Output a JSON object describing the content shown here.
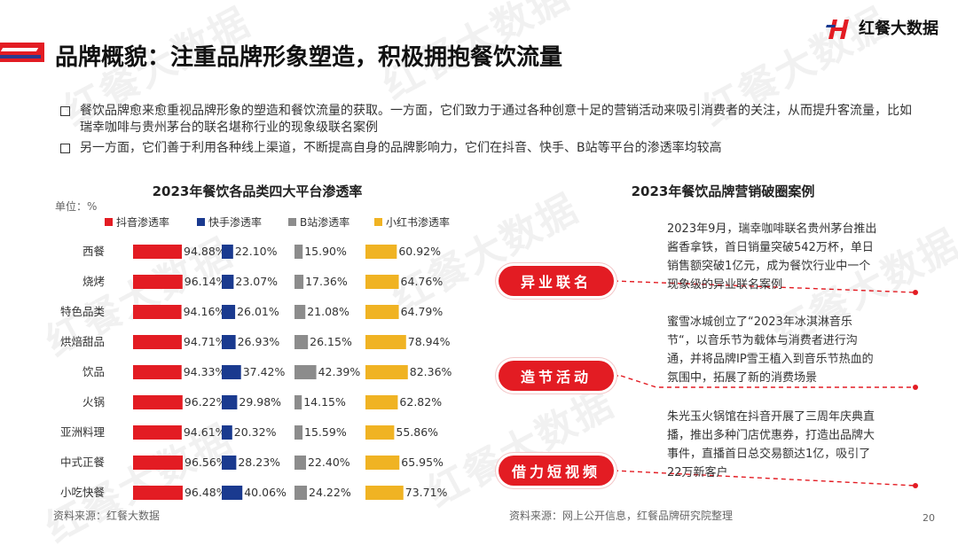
{
  "watermark": "红餐大数据",
  "header": {
    "title": "品牌概貌：注重品牌形象塑造，积极拥抱餐饮流量",
    "logo_text": "红餐大数据"
  },
  "bullets": [
    "餐饮品牌愈来愈重视品牌形象的塑造和餐饮流量的获取。一方面，它们致力于通过各种创意十足的营销活动来吸引消费者的关注，从而提升客流量，比如瑞幸咖啡与贵州茅台的联名堪称行业的现象级联名案例",
    "另一方面，它们善于利用各种线上渠道，不断提高自身的品牌影响力，它们在抖音、快手、B站等平台的渗透率均较高"
  ],
  "chart_data": {
    "type": "bar",
    "title": "2023年餐饮各品类四大平台渗透率",
    "unit_label": "单位：%",
    "categories": [
      "西餐",
      "烧烤",
      "特色品类",
      "烘焙甜品",
      "饮品",
      "火锅",
      "亚洲料理",
      "中式正餐",
      "小吃快餐"
    ],
    "series": [
      {
        "name": "抖音渗透率",
        "color": "#e31c23",
        "values": [
          94.88,
          96.14,
          94.16,
          94.71,
          94.33,
          96.22,
          94.61,
          96.56,
          96.48
        ],
        "labels": [
          "94.88%",
          "96.14%",
          "94.16%",
          "94.71%",
          "94.33%",
          "96.22%",
          "94.61%",
          "96.56%",
          "96.48%"
        ]
      },
      {
        "name": "快手渗透率",
        "color": "#1a3a8f",
        "values": [
          22.1,
          23.07,
          26.01,
          26.93,
          37.42,
          29.98,
          20.32,
          28.23,
          40.06
        ],
        "labels": [
          "22.10%",
          "23.07%",
          "26.01%",
          "26.93%",
          "37.42%",
          "29.98%",
          "20.32%",
          "28.23%",
          "40.06%"
        ]
      },
      {
        "name": "B站渗透率",
        "color": "#8c8c8c",
        "values": [
          15.9,
          17.36,
          21.08,
          26.15,
          42.39,
          14.15,
          15.59,
          22.4,
          24.22
        ],
        "labels": [
          "15.90%",
          "17.36%",
          "21.08%",
          "26.15%",
          "42.39%",
          "14.15%",
          "15.59%",
          "22.40%",
          "24.22%"
        ]
      },
      {
        "name": "小红书渗透率",
        "color": "#f0b323",
        "values": [
          60.92,
          64.76,
          64.79,
          78.94,
          82.36,
          62.82,
          55.86,
          65.95,
          73.71
        ],
        "labels": [
          "60.92%",
          "64.76%",
          "64.79%",
          "78.94%",
          "82.36%",
          "62.82%",
          "55.86%",
          "65.95%",
          "73.71%"
        ]
      }
    ],
    "grid": false,
    "legend_position": "top"
  },
  "cases": {
    "title": "2023年餐饮品牌营销破圈案例",
    "items": [
      {
        "tag": "异业联名",
        "text": "2023年9月，瑞幸咖啡联名贵州茅台推出酱香拿铁，首日销量突破542万杯，单日销售额突破1亿元，成为餐饮行业中一个现象级的异业联名案例"
      },
      {
        "tag": "造节活动",
        "text": "蜜雪冰城创立了“2023年冰淇淋音乐节“，以音乐节为载体与消费者进行沟通，并将品牌IP雪王植入到音乐节热血的氛围中，拓展了新的消费场景"
      },
      {
        "tag": "借力短视频",
        "text": "朱光玉火锅馆在抖音开展了三周年庆典直播，推出多种门店优惠券，打造出品牌大事件，直播首日总交易额达1亿，吸引了22万新客户"
      }
    ]
  },
  "footer": {
    "source_left": "资料来源：红餐大数据",
    "source_right": "资料来源：网上公开信息，红餐品牌研究院整理",
    "page": "20"
  },
  "colors": {
    "accent": "#e31c23",
    "navy": "#1a3a8f"
  }
}
